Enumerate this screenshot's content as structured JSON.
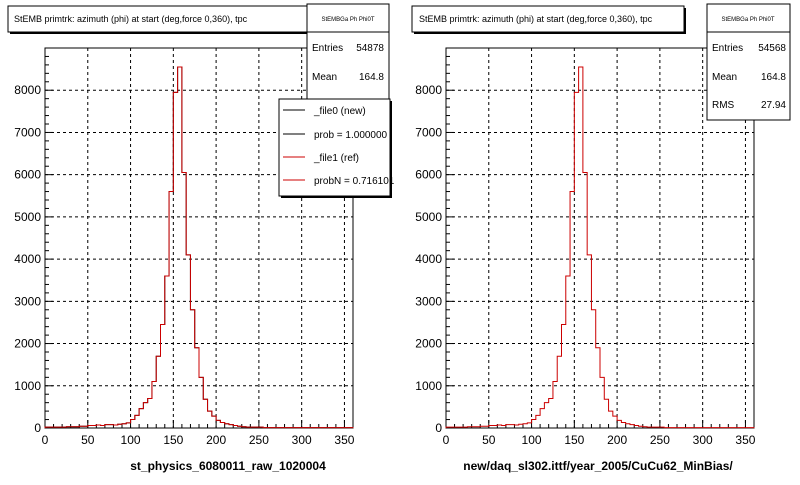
{
  "panels": [
    {
      "id": "left",
      "title": "StEMB primtrk: azimuth (phi) at start (deg,force 0,360), tpc",
      "stats": {
        "name": "StEMBGa Ph Phi0T",
        "rows": [
          {
            "label": "Entries",
            "value": "54878"
          },
          {
            "label": "Mean",
            "value": "164.8"
          }
        ]
      },
      "legend": [
        {
          "text": "_file0 (new)",
          "color": "#000000"
        },
        {
          "text": "prob = 1.000000",
          "color": "#000000"
        },
        {
          "text": "_file1 (ref)",
          "color": "#cc0000"
        },
        {
          "text": "probN = 0.716101",
          "color": "#cc0000"
        }
      ],
      "xlabel": "st_physics_6080011_raw_1020004"
    },
    {
      "id": "right",
      "title": "StEMB primtrk: azimuth (phi) at start (deg,force 0,360), tpc",
      "stats": {
        "name": "StEMBGa Ph Phi0T",
        "rows": [
          {
            "label": "Entries",
            "value": "54568"
          },
          {
            "label": "Mean",
            "value": "164.8"
          },
          {
            "label": "RMS",
            "value": "27.94"
          }
        ]
      },
      "legend": [],
      "xlabel": "new/daq_sl302.ittf/year_2005/CuCu62_MinBias/"
    }
  ],
  "chart_data": [
    {
      "type": "histogram",
      "title": "StEMB primtrk: azimuth (phi) at start (deg,force 0,360), tpc",
      "xlabel": "st_physics_6080011_raw_1020004",
      "xlim": [
        0,
        360
      ],
      "ylim": [
        0,
        9000
      ],
      "xticks": [
        0,
        50,
        100,
        150,
        200,
        250,
        300,
        350
      ],
      "yticks": [
        0,
        1000,
        2000,
        3000,
        4000,
        5000,
        6000,
        7000,
        8000
      ],
      "grid": true,
      "bin_width": 5,
      "series": [
        {
          "name": "_file0 (new)",
          "color": "#000000",
          "values": [
            20,
            20,
            20,
            20,
            20,
            30,
            30,
            30,
            40,
            40,
            60,
            60,
            70,
            60,
            80,
            80,
            70,
            90,
            100,
            120,
            200,
            300,
            460,
            600,
            700,
            1100,
            1700,
            2450,
            3600,
            5600,
            7950,
            8550,
            6050,
            4100,
            2800,
            1900,
            1200,
            680,
            400,
            280,
            180,
            130,
            100,
            80,
            60,
            40,
            30,
            20,
            20,
            20,
            20,
            10,
            10,
            10,
            10,
            10,
            10,
            10,
            10,
            10,
            10,
            10,
            10,
            10,
            10,
            10,
            10,
            10,
            10,
            10,
            10,
            10
          ]
        },
        {
          "name": "_file1 (ref)",
          "color": "#cc0000",
          "values": [
            20,
            20,
            20,
            20,
            20,
            30,
            30,
            30,
            40,
            40,
            60,
            60,
            70,
            60,
            80,
            80,
            70,
            90,
            100,
            120,
            200,
            300,
            460,
            600,
            700,
            1100,
            1700,
            2450,
            3600,
            5600,
            7950,
            8550,
            6050,
            4100,
            2800,
            1900,
            1200,
            680,
            400,
            280,
            180,
            130,
            100,
            80,
            60,
            40,
            30,
            20,
            20,
            20,
            20,
            10,
            10,
            10,
            10,
            10,
            10,
            10,
            10,
            10,
            10,
            10,
            10,
            10,
            10,
            10,
            10,
            10,
            10,
            10,
            10,
            10
          ]
        }
      ]
    },
    {
      "type": "histogram",
      "title": "StEMB primtrk: azimuth (phi) at start (deg,force 0,360), tpc",
      "xlabel": "new/daq_sl302.ittf/year_2005/CuCu62_MinBias/",
      "xlim": [
        0,
        360
      ],
      "ylim": [
        0,
        9000
      ],
      "xticks": [
        0,
        50,
        100,
        150,
        200,
        250,
        300,
        350
      ],
      "yticks": [
        0,
        1000,
        2000,
        3000,
        4000,
        5000,
        6000,
        7000,
        8000
      ],
      "grid": true,
      "bin_width": 5,
      "series": [
        {
          "name": "",
          "color": "#cc0000",
          "values": [
            20,
            20,
            20,
            20,
            20,
            30,
            30,
            30,
            40,
            40,
            60,
            60,
            70,
            60,
            80,
            80,
            70,
            90,
            100,
            120,
            200,
            300,
            460,
            600,
            700,
            1100,
            1700,
            2450,
            3600,
            5600,
            7950,
            8550,
            6050,
            4100,
            2800,
            1900,
            1200,
            680,
            400,
            280,
            180,
            130,
            100,
            80,
            60,
            40,
            30,
            20,
            20,
            20,
            20,
            10,
            10,
            10,
            10,
            10,
            10,
            10,
            10,
            10,
            10,
            10,
            10,
            10,
            10,
            10,
            10,
            10,
            10,
            10,
            10,
            10
          ]
        }
      ]
    }
  ]
}
